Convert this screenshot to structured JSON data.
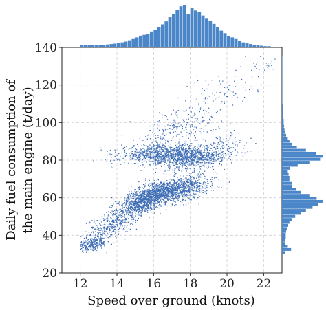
{
  "chart_data": {
    "type": "scatter",
    "title": "",
    "xlabel": "Speed over ground (knots)",
    "ylabel": [
      "Daily fuel consumption of",
      "the main engine (t/day)"
    ],
    "xlim": [
      11,
      23
    ],
    "ylim": [
      20,
      140
    ],
    "x_ticks": [
      12,
      14,
      16,
      18,
      20,
      22
    ],
    "y_ticks": [
      20,
      40,
      60,
      80,
      100,
      120,
      140
    ],
    "grid": true,
    "point_color": "#3d6db5",
    "hist_color": "#4a86c8",
    "clusters": [
      {
        "cx": 12.6,
        "cy": 35,
        "sx": 0.4,
        "sy": 2.0,
        "rho": 0.3,
        "n": 260
      },
      {
        "cx": 13.8,
        "cy": 46,
        "sx": 0.7,
        "sy": 4.5,
        "rho": 0.6,
        "n": 420
      },
      {
        "cx": 15.4,
        "cy": 58,
        "sx": 0.7,
        "sy": 4.0,
        "rho": 0.6,
        "n": 700
      },
      {
        "cx": 16.6,
        "cy": 63,
        "sx": 0.9,
        "sy": 3.5,
        "rho": 0.4,
        "n": 1100
      },
      {
        "cx": 18.0,
        "cy": 66,
        "sx": 0.7,
        "sy": 3.0,
        "rho": 0.2,
        "n": 300
      },
      {
        "cx": 16.4,
        "cy": 83,
        "sx": 1.1,
        "sy": 2.6,
        "rho": 0.1,
        "n": 800
      },
      {
        "cx": 18.2,
        "cy": 81,
        "sx": 0.8,
        "sy": 3.0,
        "rho": 0.2,
        "n": 650
      },
      {
        "cx": 17.5,
        "cy": 98,
        "sx": 1.1,
        "sy": 5.5,
        "rho": 0.4,
        "n": 260
      },
      {
        "cx": 19.6,
        "cy": 86,
        "sx": 0.8,
        "sy": 4.0,
        "rho": 0.2,
        "n": 140
      },
      {
        "cx": 19.8,
        "cy": 117,
        "sx": 0.9,
        "sy": 6.0,
        "rho": 0.3,
        "n": 80
      },
      {
        "cx": 22.0,
        "cy": 131,
        "sx": 0.4,
        "sy": 2.0,
        "rho": 0.2,
        "n": 25
      }
    ],
    "x_hist": {
      "bin_start": 12.0,
      "bin_width": 0.2,
      "counts": [
        6,
        6,
        5,
        5,
        5,
        5,
        6,
        7,
        8,
        9,
        10,
        12,
        14,
        17,
        20,
        24,
        28,
        30,
        32,
        38,
        42,
        48,
        55,
        62,
        72,
        80,
        90,
        98,
        100,
        80,
        95,
        88,
        84,
        76,
        70,
        64,
        56,
        48,
        40,
        34,
        28,
        24,
        20,
        15,
        12,
        10,
        8,
        6,
        5,
        4,
        3,
        3
      ]
    },
    "y_hist": {
      "bin_start": 30.0,
      "bin_width": 1.6,
      "counts": [
        8,
        22,
        14,
        8,
        8,
        9,
        9,
        10,
        12,
        15,
        18,
        24,
        32,
        45,
        58,
        74,
        88,
        100,
        84,
        68,
        46,
        34,
        24,
        24,
        18,
        18,
        16,
        14,
        20,
        38,
        68,
        94,
        100,
        82,
        58,
        36,
        24,
        18,
        14,
        10,
        8,
        6,
        5,
        4,
        4,
        3,
        3,
        2,
        2,
        2,
        1,
        1,
        1,
        1,
        1,
        1,
        1,
        1,
        1,
        1,
        1,
        1,
        1,
        1,
        1,
        1
      ]
    }
  }
}
